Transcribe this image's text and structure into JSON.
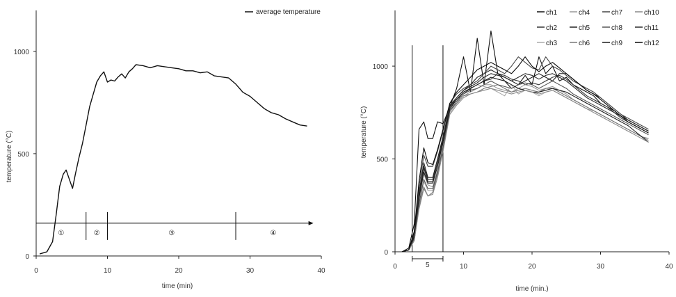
{
  "chart_data": [
    {
      "type": "line",
      "xlabel": "time (min)",
      "ylabel": "temperature (°C)",
      "xlim": [
        0,
        40
      ],
      "ylim": [
        0,
        1200
      ],
      "xticks": [
        "0",
        "10",
        "20",
        "30",
        "40"
      ],
      "yticks": [
        "0",
        "500",
        "1000"
      ],
      "legend": "top-right",
      "grid": false,
      "series": [
        {
          "name": "average temperature",
          "color": "#111111",
          "x": [
            0.5,
            1.5,
            2.3,
            2.8,
            3.3,
            3.8,
            4.2,
            4.7,
            5.1,
            5.5,
            6.0,
            6.5,
            7.0,
            7.5,
            8.0,
            8.5,
            9.0,
            9.5,
            10.0,
            10.5,
            11.0,
            11.5,
            12.0,
            12.5,
            13.0,
            13.5,
            14.0,
            15.0,
            16.0,
            17.0,
            18.0,
            19.0,
            20.0,
            21.0,
            22.0,
            23.0,
            24.0,
            25.0,
            26.0,
            27.0,
            28.0,
            29.0,
            30.0,
            31.0,
            32.0,
            33.0,
            34.0,
            35.0,
            36.0,
            37.0,
            38.0
          ],
          "y": [
            10,
            20,
            70,
            200,
            340,
            400,
            420,
            370,
            330,
            400,
            480,
            550,
            640,
            730,
            790,
            850,
            880,
            900,
            850,
            860,
            855,
            875,
            890,
            870,
            900,
            915,
            935,
            930,
            920,
            930,
            925,
            920,
            915,
            905,
            905,
            895,
            900,
            880,
            875,
            870,
            840,
            800,
            780,
            750,
            720,
            700,
            690,
            670,
            655,
            640,
            635
          ]
        }
      ],
      "phases": [
        {
          "label": "①",
          "x_start": 0,
          "x_end": 7
        },
        {
          "label": "②",
          "x_start": 7,
          "x_end": 10
        },
        {
          "label": "③",
          "x_start": 10,
          "x_end": 28
        },
        {
          "label": "④",
          "x_start": 28,
          "x_end": 38.5
        }
      ],
      "phase_arrow_y": 160
    },
    {
      "type": "line",
      "xlabel": "time (min.)",
      "ylabel": "temperature (°C)",
      "xlim": [
        0,
        40
      ],
      "ylim": [
        0,
        1300
      ],
      "xticks": [
        "0",
        "10",
        "20",
        "30",
        "40"
      ],
      "yticks": [
        "0",
        "500",
        "1000"
      ],
      "legend": "top-right",
      "grid": false,
      "vlines": [
        2.5,
        7.0
      ],
      "span_annotation": {
        "label": "5",
        "x_start": 2.5,
        "x_end": 7.0,
        "y": -40
      },
      "x": [
        1,
        2,
        2.8,
        3.5,
        4.2,
        4.8,
        5.5,
        6.2,
        7,
        8,
        9,
        10,
        11,
        12,
        13,
        14,
        15,
        16,
        17,
        18,
        19,
        20,
        21,
        22,
        23,
        24,
        25,
        26,
        27,
        28,
        29,
        30,
        31,
        32,
        33,
        34,
        35,
        36,
        37
      ],
      "series": [
        {
          "name": "ch1",
          "color": "#111111",
          "values": [
            0,
            20,
            150,
            660,
            700,
            610,
            610,
            700,
            690,
            780,
            880,
            1050,
            860,
            1150,
            900,
            1190,
            960,
            920,
            880,
            900,
            950,
            900,
            1050,
            960,
            1000,
            920,
            940,
            900,
            880,
            860,
            840,
            800,
            780,
            760,
            730,
            710,
            690,
            670,
            650
          ]
        },
        {
          "name": "ch2",
          "color": "#333333",
          "values": [
            0,
            10,
            80,
            300,
            450,
            380,
            380,
            480,
            600,
            780,
            820,
            850,
            880,
            900,
            920,
            930,
            960,
            950,
            930,
            920,
            900,
            910,
            900,
            920,
            940,
            950,
            930,
            900,
            870,
            840,
            820,
            800,
            780,
            750,
            720,
            700,
            680,
            660,
            640
          ]
        },
        {
          "name": "ch3",
          "color": "#aaaaaa",
          "values": [
            0,
            10,
            60,
            250,
            380,
            330,
            330,
            420,
            550,
            750,
            800,
            860,
            880,
            900,
            890,
            880,
            860,
            840,
            900,
            850,
            870,
            860,
            840,
            860,
            870,
            850,
            830,
            810,
            790,
            770,
            760,
            740,
            720,
            700,
            680,
            660,
            640,
            620,
            600
          ]
        },
        {
          "name": "ch4",
          "color": "#999999",
          "values": [
            0,
            10,
            70,
            280,
            420,
            360,
            350,
            440,
            570,
            760,
            800,
            840,
            860,
            880,
            900,
            900,
            880,
            870,
            860,
            880,
            900,
            890,
            870,
            880,
            890,
            870,
            850,
            820,
            800,
            780,
            760,
            740,
            720,
            700,
            680,
            660,
            640,
            620,
            600
          ]
        },
        {
          "name": "ch5",
          "color": "#222222",
          "values": [
            0,
            10,
            90,
            320,
            480,
            400,
            400,
            500,
            620,
            790,
            830,
            870,
            900,
            940,
            960,
            980,
            960,
            940,
            920,
            900,
            920,
            940,
            960,
            940,
            920,
            960,
            960,
            930,
            900,
            870,
            850,
            830,
            800,
            770,
            740,
            710,
            690,
            670,
            650
          ]
        },
        {
          "name": "ch6",
          "color": "#777777",
          "values": [
            0,
            10,
            60,
            240,
            350,
            300,
            320,
            420,
            560,
            760,
            800,
            840,
            850,
            860,
            880,
            890,
            900,
            880,
            860,
            870,
            880,
            870,
            860,
            880,
            880,
            860,
            840,
            820,
            800,
            780,
            760,
            740,
            720,
            700,
            680,
            660,
            640,
            620,
            610
          ]
        },
        {
          "name": "ch7",
          "color": "#444444",
          "values": [
            0,
            10,
            100,
            350,
            520,
            460,
            460,
            540,
            650,
            800,
            850,
            880,
            900,
            920,
            960,
            1000,
            980,
            960,
            1000,
            1050,
            1020,
            990,
            980,
            1050,
            1000,
            980,
            950,
            920,
            900,
            880,
            860,
            830,
            800,
            770,
            740,
            720,
            700,
            680,
            660
          ]
        },
        {
          "name": "ch8",
          "color": "#555555",
          "values": [
            0,
            10,
            70,
            260,
            390,
            340,
            340,
            430,
            560,
            760,
            810,
            850,
            870,
            880,
            900,
            920,
            900,
            890,
            880,
            900,
            910,
            900,
            880,
            900,
            920,
            900,
            880,
            850,
            830,
            810,
            790,
            770,
            750,
            730,
            710,
            690,
            670,
            650,
            630
          ]
        },
        {
          "name": "ch9",
          "color": "#1a1a1a",
          "values": [
            0,
            10,
            80,
            290,
            430,
            370,
            370,
            460,
            590,
            770,
            820,
            860,
            880,
            900,
            920,
            940,
            930,
            920,
            900,
            880,
            870,
            860,
            860,
            870,
            880,
            870,
            860,
            840,
            820,
            800,
            780,
            760,
            740,
            720,
            700,
            680,
            650,
            620,
            590
          ]
        },
        {
          "name": "ch10",
          "color": "#888888",
          "values": [
            0,
            10,
            60,
            230,
            340,
            300,
            310,
            400,
            540,
            740,
            790,
            830,
            850,
            860,
            870,
            880,
            870,
            860,
            850,
            860,
            870,
            860,
            850,
            860,
            870,
            850,
            830,
            810,
            790,
            770,
            750,
            730,
            710,
            690,
            670,
            650,
            630,
            610,
            590
          ]
        },
        {
          "name": "ch11",
          "color": "#2a2a2a",
          "values": [
            0,
            10,
            90,
            310,
            460,
            390,
            390,
            480,
            610,
            780,
            830,
            870,
            890,
            910,
            940,
            960,
            950,
            940,
            920,
            940,
            960,
            950,
            930,
            950,
            960,
            940,
            920,
            890,
            860,
            830,
            810,
            790,
            770,
            750,
            730,
            710,
            690,
            670,
            650
          ]
        },
        {
          "name": "ch12",
          "color": "#0a0a0a",
          "values": [
            0,
            10,
            110,
            380,
            560,
            480,
            470,
            550,
            660,
            800,
            860,
            900,
            940,
            980,
            1000,
            1020,
            1000,
            980,
            960,
            1000,
            1050,
            1000,
            970,
            1000,
            1020,
            990,
            960,
            930,
            900,
            870,
            850,
            820,
            790,
            760,
            730,
            700,
            680,
            660,
            640
          ]
        }
      ]
    }
  ]
}
